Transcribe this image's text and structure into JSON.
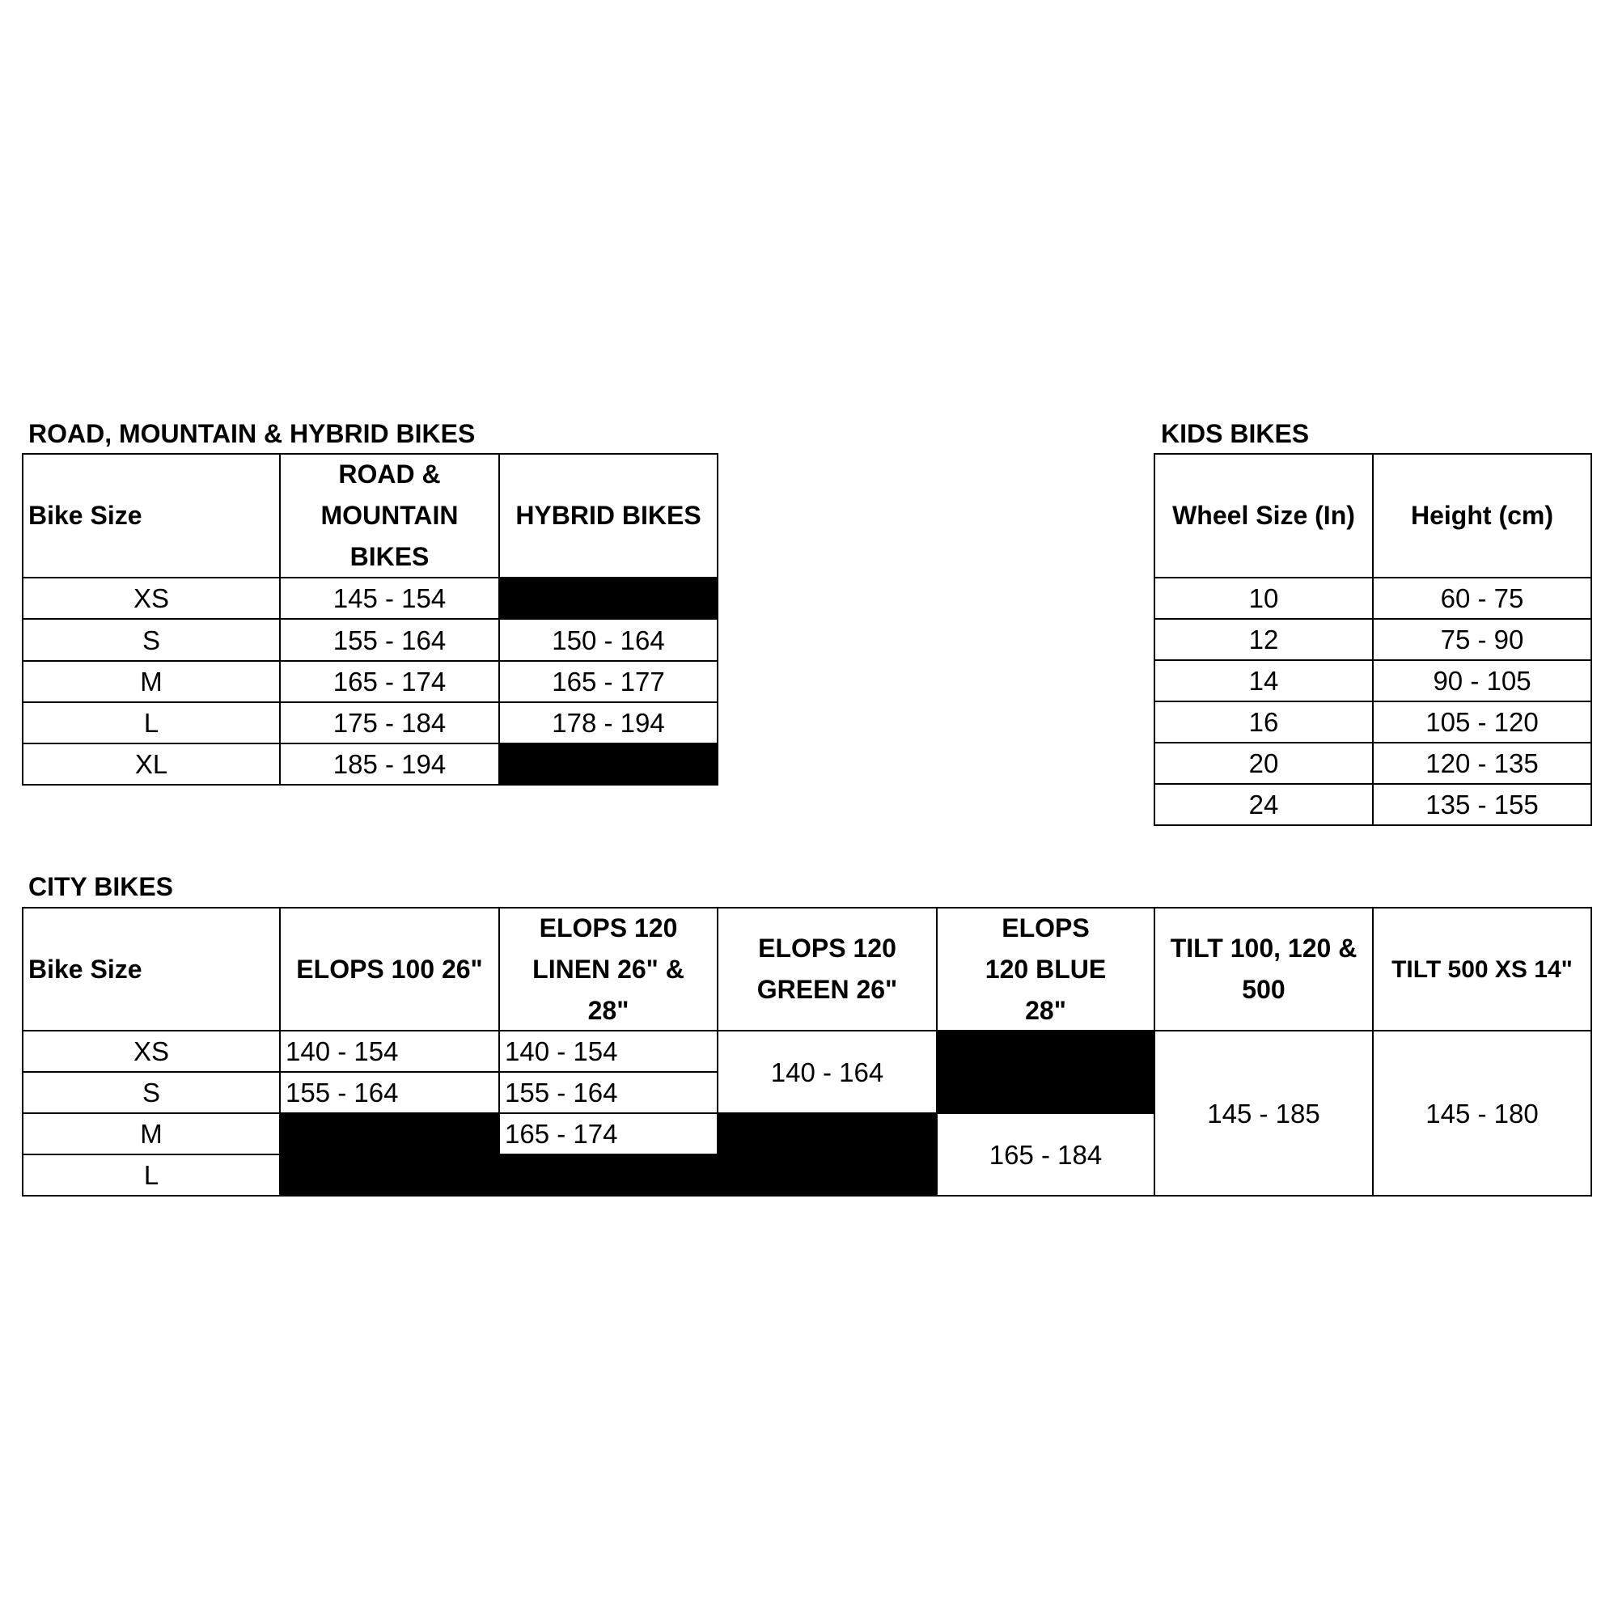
{
  "road_mountain_hybrid": {
    "title": "ROAD, MOUNTAIN & HYBRID BIKES",
    "headers": [
      "Bike Size",
      "ROAD & MOUNTAIN BIKES",
      "HYBRID BIKES"
    ],
    "rows": [
      {
        "size": "XS",
        "road_mountain": "145 - 154",
        "hybrid": null
      },
      {
        "size": "S",
        "road_mountain": "155 - 164",
        "hybrid": "150 - 164"
      },
      {
        "size": "M",
        "road_mountain": "165 - 174",
        "hybrid": "165 - 177"
      },
      {
        "size": "L",
        "road_mountain": "175 - 184",
        "hybrid": "178 - 194"
      },
      {
        "size": "XL",
        "road_mountain": "185 - 194",
        "hybrid": null
      }
    ]
  },
  "kids": {
    "title": "KIDS BIKES",
    "headers": [
      "Wheel Size (In)",
      "Height (cm)"
    ],
    "rows": [
      {
        "wheel": "10",
        "height": "60 - 75"
      },
      {
        "wheel": "12",
        "height": "75 - 90"
      },
      {
        "wheel": "14",
        "height": "90 - 105"
      },
      {
        "wheel": "16",
        "height": "105 - 120"
      },
      {
        "wheel": "20",
        "height": "120 - 135"
      },
      {
        "wheel": "24",
        "height": "135 - 155"
      }
    ]
  },
  "city": {
    "title": "CITY BIKES",
    "headers": [
      "Bike Size",
      "ELOPS 100 26\"",
      "ELOPS 120 LINEN 26\" & 28\"",
      "ELOPS 120 GREEN 26\"",
      "ELOPS 120 BLUE 28\"",
      "TILT 100, 120 & 500",
      "TILT 500 XS 14\""
    ],
    "sizes": [
      "XS",
      "S",
      "M",
      "L"
    ],
    "elops100": {
      "XS": "140 - 154",
      "S": "155 - 164"
    },
    "elops120_linen": {
      "XS": "140 - 154",
      "S": "155 - 164",
      "M": "165 - 174"
    },
    "elops120_green": {
      "XS_S": "140 - 164"
    },
    "elops120_blue": {
      "M_L": "165 - 184"
    },
    "tilt_100_120_500": {
      "XS_L": "145 - 185"
    },
    "tilt_500_xs_14": {
      "XS_L": "145 - 180"
    }
  }
}
